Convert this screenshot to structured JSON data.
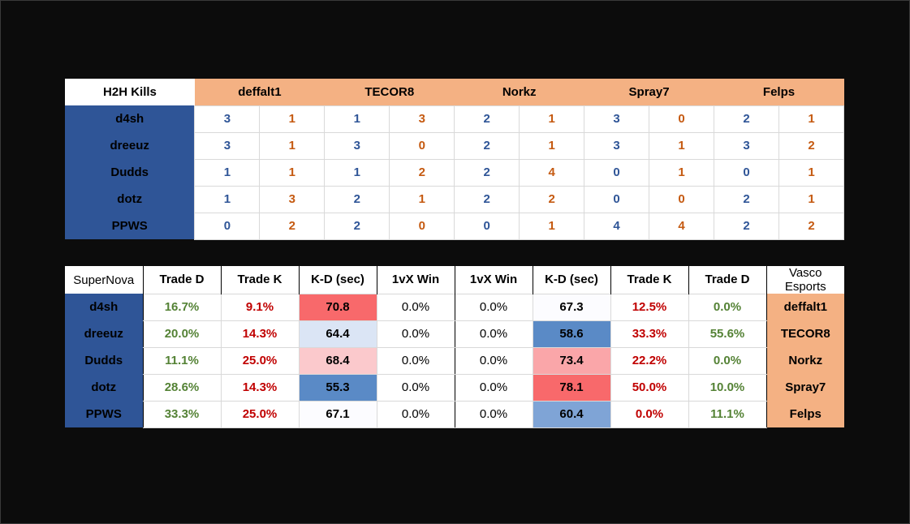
{
  "h2h": {
    "title": "H2H Kills",
    "opponents": [
      "deffalt1",
      "TECOR8",
      "Norkz",
      "Spray7",
      "Felps"
    ],
    "rows": [
      {
        "player": "d4sh",
        "vals": [
          3,
          1,
          1,
          3,
          2,
          1,
          3,
          0,
          2,
          1
        ]
      },
      {
        "player": "dreeuz",
        "vals": [
          3,
          1,
          3,
          0,
          2,
          1,
          3,
          1,
          3,
          2
        ]
      },
      {
        "player": "Dudds",
        "vals": [
          1,
          1,
          1,
          2,
          2,
          4,
          0,
          1,
          0,
          1
        ]
      },
      {
        "player": "dotz",
        "vals": [
          1,
          3,
          2,
          1,
          2,
          2,
          0,
          0,
          2,
          1
        ]
      },
      {
        "player": "PPWS",
        "vals": [
          0,
          2,
          2,
          0,
          0,
          1,
          4,
          4,
          2,
          2
        ]
      }
    ],
    "colors": {
      "left": "#2f5597",
      "right": "#c55a11",
      "header": "#f4b183",
      "player_bg": "#2f5597"
    }
  },
  "stats": {
    "team_left": "SuperNova",
    "team_right": "Vasco Esports",
    "headers": [
      "Trade D",
      "Trade K",
      "K-D (sec)",
      "1vX Win",
      "1vX Win",
      "K-D (sec)",
      "Trade K",
      "Trade D"
    ],
    "rows": [
      {
        "player": "d4sh",
        "trade_d": "16.7%",
        "trade_k": "9.1%",
        "kd": "70.8",
        "win": "0.0%",
        "opp_win": "0.0%",
        "opp_kd": "67.3",
        "opp_trade_k": "12.5%",
        "opp_trade_d": "0.0%",
        "opponent": "deffalt1",
        "kd_bg": "#f8696b",
        "opp_kd_bg": "#fcfcff"
      },
      {
        "player": "dreeuz",
        "trade_d": "20.0%",
        "trade_k": "14.3%",
        "kd": "64.4",
        "win": "0.0%",
        "opp_win": "0.0%",
        "opp_kd": "58.6",
        "opp_trade_k": "33.3%",
        "opp_trade_d": "55.6%",
        "opponent": "TECOR8",
        "kd_bg": "#dbe5f5",
        "opp_kd_bg": "#5a8ac6"
      },
      {
        "player": "Dudds",
        "trade_d": "11.1%",
        "trade_k": "25.0%",
        "kd": "68.4",
        "win": "0.0%",
        "opp_win": "0.0%",
        "opp_kd": "73.4",
        "opp_trade_k": "22.2%",
        "opp_trade_d": "0.0%",
        "opponent": "Norkz",
        "kd_bg": "#fbc9cc",
        "opp_kd_bg": "#faa6a9"
      },
      {
        "player": "dotz",
        "trade_d": "28.6%",
        "trade_k": "14.3%",
        "kd": "55.3",
        "win": "0.0%",
        "opp_win": "0.0%",
        "opp_kd": "78.1",
        "opp_trade_k": "50.0%",
        "opp_trade_d": "10.0%",
        "opponent": "Spray7",
        "kd_bg": "#5a8ac6",
        "opp_kd_bg": "#f8696b"
      },
      {
        "player": "PPWS",
        "trade_d": "33.3%",
        "trade_k": "25.0%",
        "kd": "67.1",
        "win": "0.0%",
        "opp_win": "0.0%",
        "opp_kd": "60.4",
        "opp_trade_k": "0.0%",
        "opp_trade_d": "11.1%",
        "opponent": "Felps",
        "kd_bg": "#fcfcff",
        "opp_kd_bg": "#7fa4d6"
      }
    ]
  }
}
